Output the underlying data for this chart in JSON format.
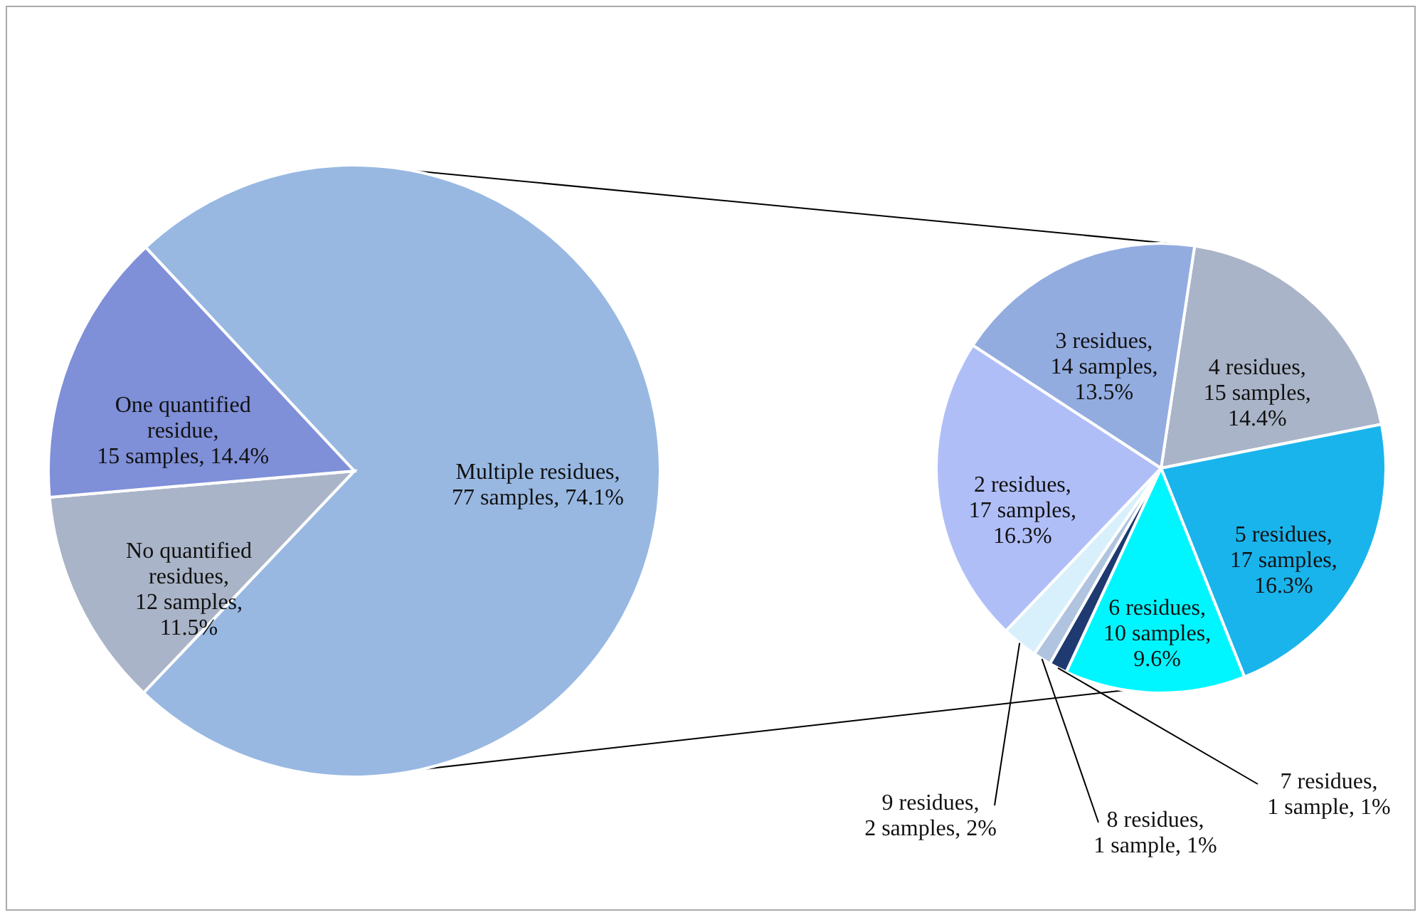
{
  "chart_data": [
    {
      "type": "pie",
      "categories": [
        "Multiple residues,\n77 samples, 74.1%",
        "No quantified\nresidues,\n12 samples,\n11.5%",
        "One quantified\nresidue,\n15 samples, 14.4%"
      ],
      "values": [
        77,
        12,
        15
      ],
      "colors": [
        "#98b8e2",
        "#aab4c8",
        "#7f8fd8"
      ]
    },
    {
      "type": "pie",
      "categories": [
        "4 residues,\n15 samples,\n14.4%",
        "5 residues,\n17 samples,\n16.3%",
        "6 residues,\n10 samples,\n9.6%",
        "7 residues,\n1 sample, 1%",
        "8 residues,\n1 sample, 1%",
        "9 residues,\n2 samples, 2%",
        "2 residues,\n17 samples,\n16.3%",
        "3 residues,\n14 samples,\n13.5%"
      ],
      "values": [
        15,
        17,
        10,
        1,
        1,
        2,
        17,
        14
      ],
      "colors": [
        "#aab4c8",
        "#1ab4ec",
        "#00f6ff",
        "#1f3a70",
        "#b0c4e0",
        "#d8f0fc",
        "#b0bef8",
        "#93ace0"
      ]
    }
  ]
}
